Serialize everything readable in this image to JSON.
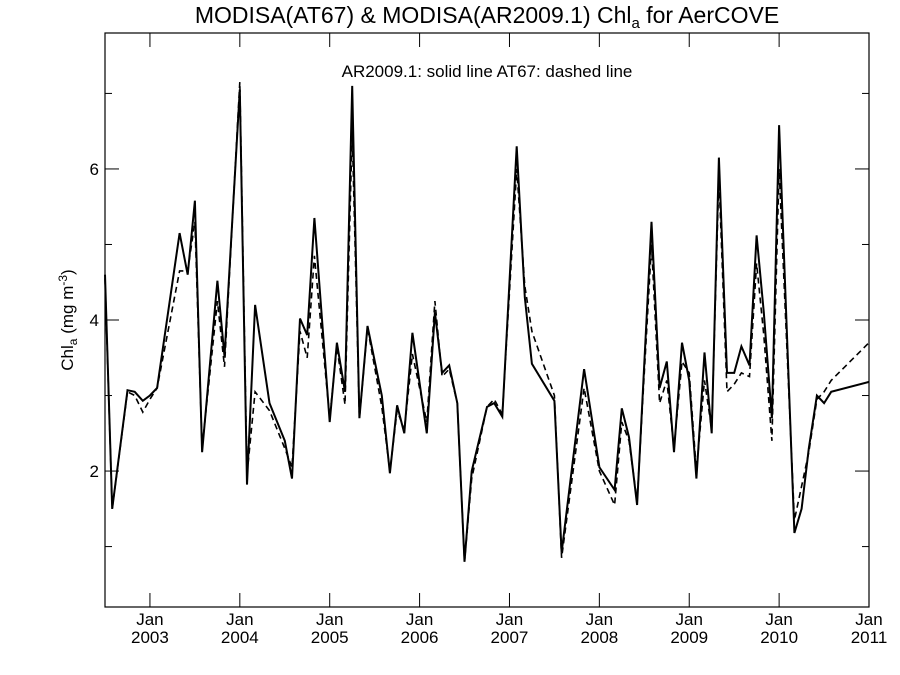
{
  "chart_data": {
    "type": "line",
    "title": {
      "prefix": "MODISA(AT67) & MODISA(AR2009.1)  Chl",
      "sub": "a",
      "suffix": " for AerCOVE"
    },
    "annotation": "AR2009.1: solid line   AT67: dashed line",
    "ylabel": {
      "main": "Chl",
      "sub": "a",
      "unit_prefix": " (mg m",
      "unit_sup": "-3",
      "unit_suffix": ")"
    },
    "xlim": [
      2002.5,
      2011.0
    ],
    "ylim": [
      0.2,
      7.8
    ],
    "yticks_major": [
      2,
      4,
      6
    ],
    "yticks_minor": [
      1,
      3,
      5,
      7
    ],
    "xticks": [
      {
        "x": 2003.0,
        "month": "Jan",
        "year": "2003"
      },
      {
        "x": 2004.0,
        "month": "Jan",
        "year": "2004"
      },
      {
        "x": 2005.0,
        "month": "Jan",
        "year": "2005"
      },
      {
        "x": 2006.0,
        "month": "Jan",
        "year": "2006"
      },
      {
        "x": 2007.0,
        "month": "Jan",
        "year": "2007"
      },
      {
        "x": 2008.0,
        "month": "Jan",
        "year": "2008"
      },
      {
        "x": 2009.0,
        "month": "Jan",
        "year": "2009"
      },
      {
        "x": 2010.0,
        "month": "Jan",
        "year": "2010"
      },
      {
        "x": 2011.0,
        "month": "Jan",
        "year": "2011"
      }
    ],
    "series": [
      {
        "name": "AR2009.1",
        "style": "solid",
        "points": [
          [
            2002.5,
            4.6
          ],
          [
            2002.58,
            1.5
          ],
          [
            2002.75,
            3.07
          ],
          [
            2002.83,
            3.05
          ],
          [
            2002.92,
            2.93
          ],
          [
            2003.0,
            3.0
          ],
          [
            2003.08,
            3.1
          ],
          [
            2003.33,
            5.15
          ],
          [
            2003.42,
            4.6
          ],
          [
            2003.5,
            5.58
          ],
          [
            2003.58,
            2.25
          ],
          [
            2003.75,
            4.52
          ],
          [
            2003.83,
            3.52
          ],
          [
            2004.0,
            7.05
          ],
          [
            2004.08,
            1.82
          ],
          [
            2004.17,
            4.2
          ],
          [
            2004.33,
            2.9
          ],
          [
            2004.5,
            2.4
          ],
          [
            2004.58,
            1.9
          ],
          [
            2004.67,
            4.02
          ],
          [
            2004.75,
            3.8
          ],
          [
            2004.83,
            5.35
          ],
          [
            2005.0,
            2.65
          ],
          [
            2005.08,
            3.7
          ],
          [
            2005.17,
            3.05
          ],
          [
            2005.25,
            7.1
          ],
          [
            2005.33,
            2.7
          ],
          [
            2005.42,
            3.92
          ],
          [
            2005.58,
            3.0
          ],
          [
            2005.67,
            1.97
          ],
          [
            2005.75,
            2.87
          ],
          [
            2005.83,
            2.5
          ],
          [
            2005.92,
            3.83
          ],
          [
            2006.08,
            2.5
          ],
          [
            2006.17,
            4.1
          ],
          [
            2006.25,
            3.3
          ],
          [
            2006.33,
            3.4
          ],
          [
            2006.42,
            2.9
          ],
          [
            2006.5,
            0.8
          ],
          [
            2006.58,
            2.0
          ],
          [
            2006.75,
            2.85
          ],
          [
            2006.83,
            2.9
          ],
          [
            2006.92,
            2.72
          ],
          [
            2007.08,
            6.3
          ],
          [
            2007.17,
            4.3
          ],
          [
            2007.25,
            3.42
          ],
          [
            2007.5,
            2.93
          ],
          [
            2007.58,
            0.92
          ],
          [
            2007.83,
            3.35
          ],
          [
            2008.0,
            2.05
          ],
          [
            2008.17,
            1.75
          ],
          [
            2008.25,
            2.83
          ],
          [
            2008.33,
            2.45
          ],
          [
            2008.42,
            1.55
          ],
          [
            2008.58,
            5.3
          ],
          [
            2008.67,
            3.1
          ],
          [
            2008.75,
            3.45
          ],
          [
            2008.83,
            2.25
          ],
          [
            2008.92,
            3.7
          ],
          [
            2009.0,
            3.2
          ],
          [
            2009.08,
            1.9
          ],
          [
            2009.17,
            3.57
          ],
          [
            2009.25,
            2.5
          ],
          [
            2009.33,
            6.15
          ],
          [
            2009.42,
            3.3
          ],
          [
            2009.5,
            3.3
          ],
          [
            2009.58,
            3.65
          ],
          [
            2009.67,
            3.4
          ],
          [
            2009.75,
            5.12
          ],
          [
            2009.83,
            4.1
          ],
          [
            2009.92,
            2.7
          ],
          [
            2010.0,
            6.58
          ],
          [
            2010.17,
            1.18
          ],
          [
            2010.25,
            1.5
          ],
          [
            2010.33,
            2.3
          ],
          [
            2010.42,
            3.0
          ],
          [
            2010.5,
            2.9
          ],
          [
            2010.58,
            3.05
          ],
          [
            2011.0,
            3.18
          ]
        ]
      },
      {
        "name": "AT67",
        "style": "dashed",
        "points": [
          [
            2002.5,
            4.55
          ],
          [
            2002.58,
            1.5
          ],
          [
            2002.75,
            3.05
          ],
          [
            2002.83,
            3.0
          ],
          [
            2002.92,
            2.78
          ],
          [
            2003.0,
            2.95
          ],
          [
            2003.08,
            3.1
          ],
          [
            2003.33,
            4.65
          ],
          [
            2003.42,
            4.65
          ],
          [
            2003.5,
            5.3
          ],
          [
            2003.58,
            2.3
          ],
          [
            2003.75,
            4.25
          ],
          [
            2003.83,
            3.38
          ],
          [
            2004.0,
            7.15
          ],
          [
            2004.08,
            1.95
          ],
          [
            2004.17,
            3.05
          ],
          [
            2004.33,
            2.8
          ],
          [
            2004.5,
            2.3
          ],
          [
            2004.58,
            2.05
          ],
          [
            2004.67,
            3.85
          ],
          [
            2004.75,
            3.5
          ],
          [
            2004.83,
            4.85
          ],
          [
            2005.0,
            2.7
          ],
          [
            2005.08,
            3.65
          ],
          [
            2005.17,
            2.88
          ],
          [
            2005.25,
            6.5
          ],
          [
            2005.33,
            2.7
          ],
          [
            2005.42,
            3.9
          ],
          [
            2005.58,
            2.85
          ],
          [
            2005.67,
            2.0
          ],
          [
            2005.75,
            2.8
          ],
          [
            2005.83,
            2.55
          ],
          [
            2005.92,
            3.55
          ],
          [
            2006.08,
            2.65
          ],
          [
            2006.17,
            4.25
          ],
          [
            2006.25,
            3.25
          ],
          [
            2006.33,
            3.35
          ],
          [
            2006.42,
            2.9
          ],
          [
            2006.5,
            0.8
          ],
          [
            2006.58,
            1.9
          ],
          [
            2006.75,
            2.85
          ],
          [
            2006.83,
            2.95
          ],
          [
            2006.92,
            2.75
          ],
          [
            2007.08,
            6.0
          ],
          [
            2007.17,
            4.45
          ],
          [
            2007.25,
            3.85
          ],
          [
            2007.5,
            3.0
          ],
          [
            2007.58,
            0.85
          ],
          [
            2007.83,
            3.1
          ],
          [
            2008.0,
            2.0
          ],
          [
            2008.17,
            1.55
          ],
          [
            2008.25,
            2.65
          ],
          [
            2008.33,
            2.4
          ],
          [
            2008.42,
            1.6
          ],
          [
            2008.58,
            5.0
          ],
          [
            2008.67,
            2.9
          ],
          [
            2008.75,
            3.2
          ],
          [
            2008.83,
            2.3
          ],
          [
            2008.92,
            3.45
          ],
          [
            2009.0,
            3.3
          ],
          [
            2009.08,
            2.0
          ],
          [
            2009.17,
            3.2
          ],
          [
            2009.25,
            2.55
          ],
          [
            2009.33,
            5.9
          ],
          [
            2009.42,
            3.05
          ],
          [
            2009.5,
            3.15
          ],
          [
            2009.58,
            3.3
          ],
          [
            2009.67,
            3.25
          ],
          [
            2009.75,
            4.75
          ],
          [
            2009.83,
            3.8
          ],
          [
            2009.92,
            2.4
          ],
          [
            2010.0,
            6.0
          ],
          [
            2010.17,
            1.35
          ],
          [
            2010.25,
            1.8
          ],
          [
            2010.33,
            2.25
          ],
          [
            2010.42,
            2.95
          ],
          [
            2010.5,
            3.05
          ],
          [
            2010.58,
            3.2
          ],
          [
            2011.0,
            3.7
          ]
        ]
      }
    ]
  }
}
